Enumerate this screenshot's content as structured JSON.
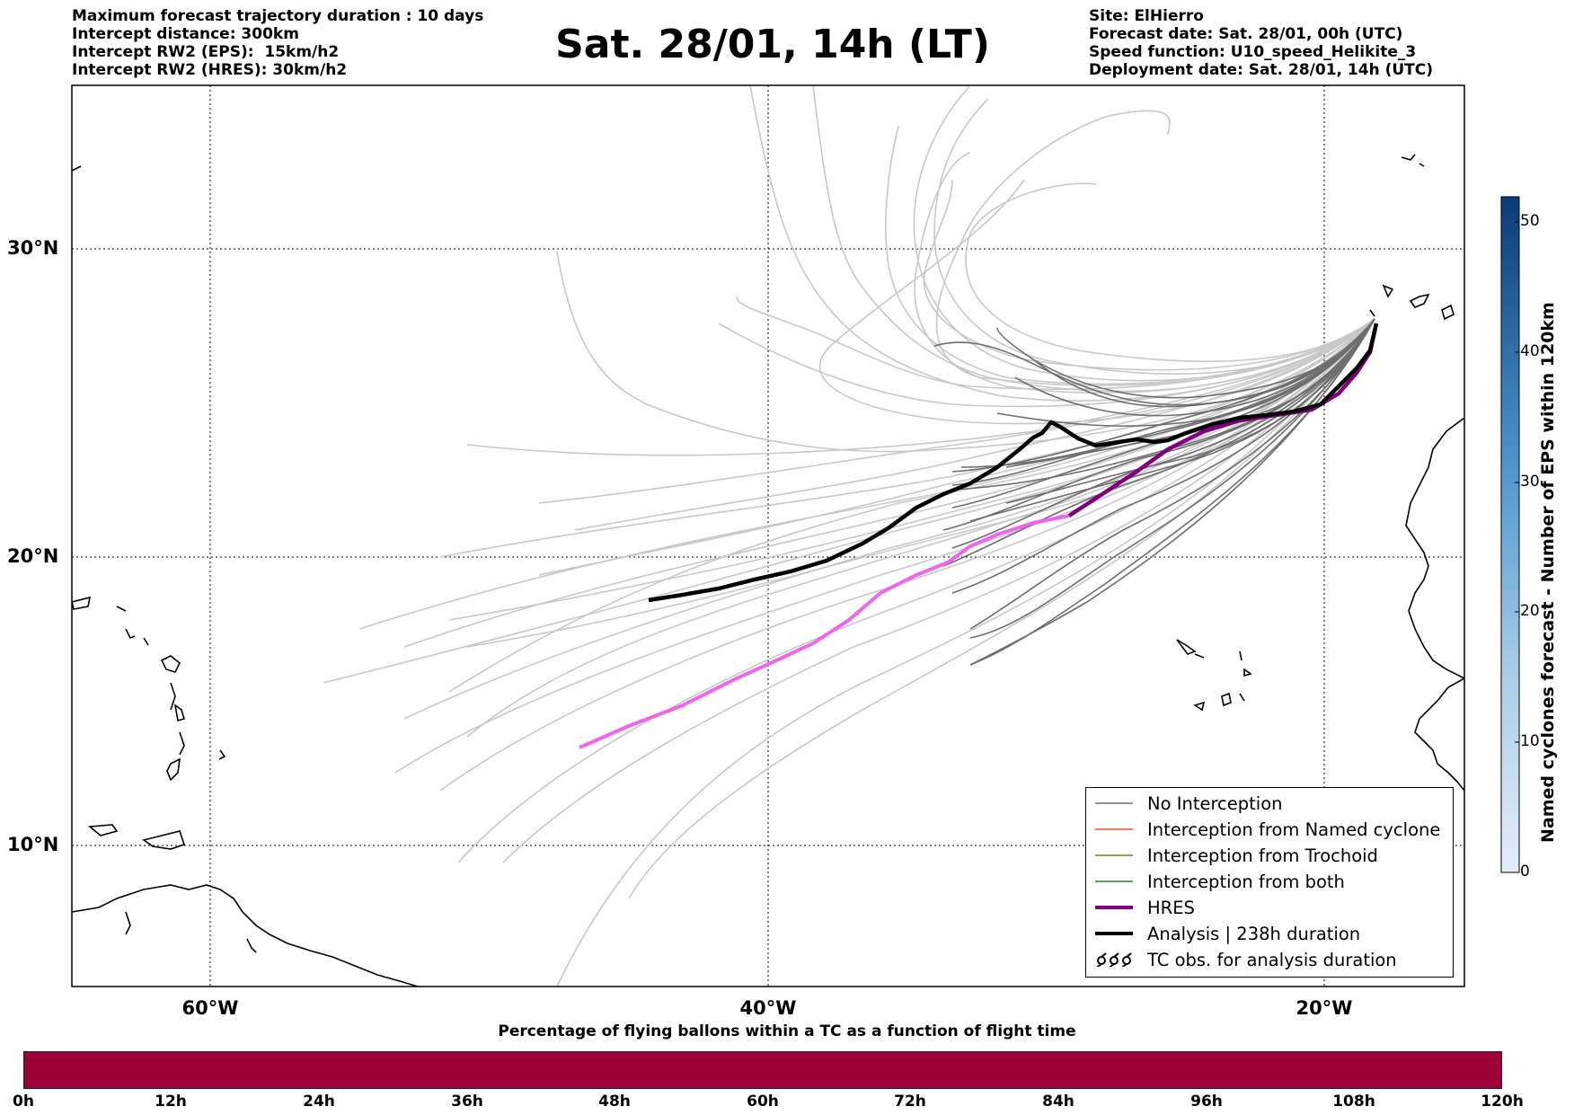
{
  "header": {
    "left_lines": [
      "Maximum forecast trajectory duration : 10 days",
      "Intercept distance: 300km",
      "Intercept RW2 (EPS):  15km/h2",
      "Intercept RW2 (HRES): 30km/h2"
    ],
    "title": "Sat. 28/01, 14h (LT)",
    "right_lines": [
      "Site: ElHierro",
      "Forecast date: Sat. 28/01, 00h (UTC)",
      "Speed function: U10_speed_Helikite_3",
      "Deployment date: Sat. 28/01, 14h (UTC)"
    ]
  },
  "map": {
    "lat_labels": [
      "30°N",
      "20°N",
      "10°N"
    ],
    "lon_labels": [
      "60°W",
      "40°W",
      "20°W"
    ],
    "colors": {
      "no_interception": "#6e6e6e",
      "named_cyclone": "#e8541e",
      "trochoid": "#7b7b14",
      "both": "#2a7a2a",
      "hres": "#800080",
      "hres_early": "#ee66ee",
      "analysis": "#000000",
      "ensemble_light": "#c8c8c8"
    }
  },
  "legend": {
    "items": [
      {
        "label": "No Interception",
        "icon": "thin-gray-line"
      },
      {
        "label": "Interception from Named cyclone",
        "icon": "thin-orange-line"
      },
      {
        "label": "Interception from Trochoid",
        "icon": "thin-olive-line"
      },
      {
        "label": "Interception from both",
        "icon": "thin-green-line"
      },
      {
        "label": "HRES",
        "icon": "thick-purple-line"
      },
      {
        "label": "Analysis | 238h duration",
        "icon": "thick-black-line"
      },
      {
        "label": "TC obs. for analysis duration",
        "icon": "cyclone-symbols-icon"
      }
    ]
  },
  "colorbar": {
    "title": "Named cyclones forecast - Number of EPS within 120km",
    "ticks": [
      "50",
      "40",
      "30",
      "20",
      "10",
      "0"
    ],
    "color_low": "#e4eef9",
    "color_high": "#0b3c7a"
  },
  "timebar": {
    "title": "Percentage of flying ballons within a TC as a function of flight time",
    "color": "#9e003a",
    "ticks": [
      "0h",
      "12h",
      "24h",
      "36h",
      "48h",
      "60h",
      "72h",
      "84h",
      "96h",
      "108h",
      "120h"
    ]
  }
}
